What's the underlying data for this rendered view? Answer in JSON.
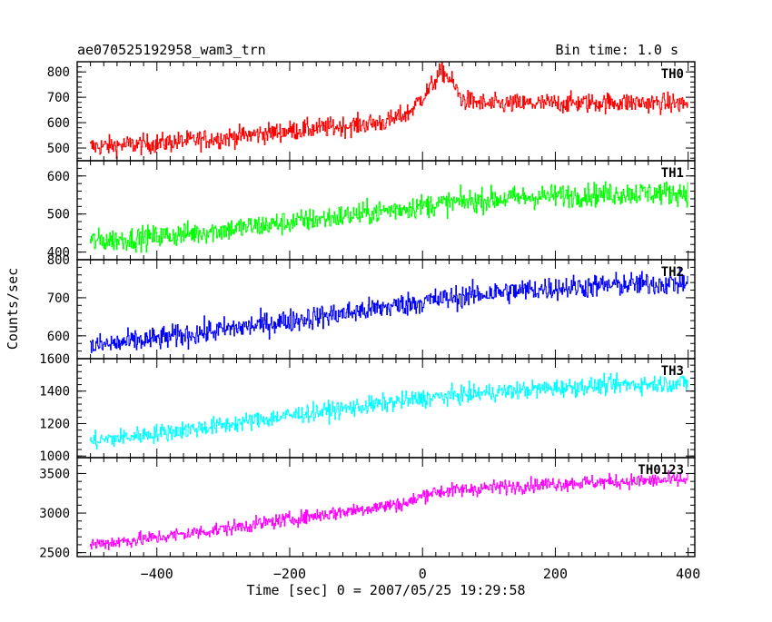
{
  "header": {
    "title": "ae070525192958_wam3_trn",
    "bin_time": "Bin time: 1.0 s"
  },
  "chart_data": {
    "type": "line",
    "xlabel": "Time [sec] 0 = 2007/05/25 19:29:58",
    "ylabel": "Counts/sec",
    "xlim": [
      -520,
      410
    ],
    "x_ticks": [
      -400,
      -200,
      0,
      200,
      400
    ],
    "x_tick_labels": [
      "−400",
      "−200",
      "0",
      "200",
      "400"
    ],
    "x_range": [
      -500,
      400
    ],
    "panels": [
      {
        "name": "TH0",
        "color": "#ff0000",
        "ylim": [
          450,
          840
        ],
        "y_ticks": [
          500,
          600,
          700,
          800
        ],
        "y_tick_labels": [
          "500",
          "600",
          "700",
          "800"
        ],
        "trend": [
          [
            -500,
            505
          ],
          [
            -400,
            518
          ],
          [
            -300,
            540
          ],
          [
            -200,
            568
          ],
          [
            -100,
            590
          ],
          [
            -50,
            605
          ],
          [
            -20,
            640
          ],
          [
            10,
            730
          ],
          [
            30,
            805
          ],
          [
            45,
            760
          ],
          [
            60,
            690
          ],
          [
            100,
            672
          ],
          [
            200,
            676
          ],
          [
            300,
            680
          ],
          [
            400,
            675
          ]
        ],
        "noise": 28
      },
      {
        "name": "TH1",
        "color": "#00ff00",
        "ylim": [
          380,
          640
        ],
        "y_ticks": [
          400,
          500,
          600
        ],
        "y_tick_labels": [
          "400",
          "500",
          "600"
        ],
        "trend": [
          [
            -500,
            428
          ],
          [
            -400,
            440
          ],
          [
            -300,
            458
          ],
          [
            -200,
            478
          ],
          [
            -100,
            498
          ],
          [
            0,
            522
          ],
          [
            100,
            538
          ],
          [
            200,
            548
          ],
          [
            300,
            554
          ],
          [
            400,
            556
          ]
        ],
        "noise": 22
      },
      {
        "name": "TH2",
        "color": "#0000ff",
        "ylim": [
          540,
          800
        ],
        "y_ticks": [
          600,
          700,
          800
        ],
        "y_tick_labels": [
          "600",
          "700",
          "800"
        ],
        "trend": [
          [
            -500,
            572
          ],
          [
            -400,
            592
          ],
          [
            -300,
            616
          ],
          [
            -200,
            640
          ],
          [
            -100,
            663
          ],
          [
            0,
            690
          ],
          [
            100,
            712
          ],
          [
            200,
            726
          ],
          [
            300,
            734
          ],
          [
            400,
            740
          ]
        ],
        "noise": 22
      },
      {
        "name": "TH3",
        "color": "#00ffff",
        "ylim": [
          990,
          1600
        ],
        "y_ticks": [
          1000,
          1200,
          1400,
          1600
        ],
        "y_tick_labels": [
          "1000",
          "1200",
          "1400",
          "1600"
        ],
        "trend": [
          [
            -500,
            1090
          ],
          [
            -400,
            1140
          ],
          [
            -300,
            1190
          ],
          [
            -200,
            1250
          ],
          [
            -100,
            1300
          ],
          [
            0,
            1355
          ],
          [
            100,
            1390
          ],
          [
            200,
            1420
          ],
          [
            300,
            1440
          ],
          [
            400,
            1450
          ]
        ],
        "noise": 40
      },
      {
        "name": "TH0123",
        "color": "#ff00ff",
        "ylim": [
          2450,
          3700
        ],
        "y_ticks": [
          2500,
          3000,
          3500
        ],
        "y_tick_labels": [
          "2500",
          "3000",
          "3500"
        ],
        "trend": [
          [
            -500,
            2600
          ],
          [
            -400,
            2690
          ],
          [
            -300,
            2800
          ],
          [
            -200,
            2920
          ],
          [
            -100,
            3040
          ],
          [
            -20,
            3130
          ],
          [
            10,
            3260
          ],
          [
            100,
            3320
          ],
          [
            200,
            3370
          ],
          [
            300,
            3400
          ],
          [
            400,
            3420
          ]
        ],
        "noise": 65
      }
    ]
  }
}
